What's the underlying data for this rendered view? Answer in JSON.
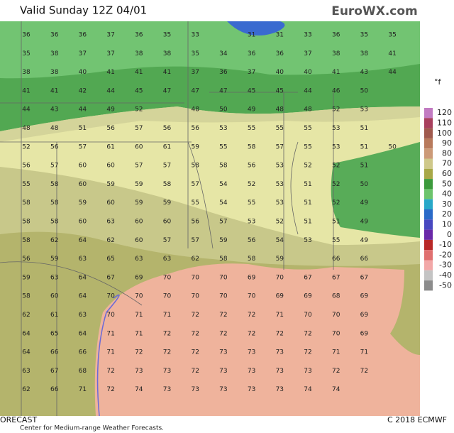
{
  "header": {
    "title": "Valid Sunday 12Z 04/01",
    "brand": "EuroWX.com"
  },
  "legend": {
    "unit": "°f",
    "items": [
      {
        "label": 120,
        "color": "#c27bc2"
      },
      {
        "label": 110,
        "color": "#a8405e"
      },
      {
        "label": 100,
        "color": "#a05a4e"
      },
      {
        "label": 90,
        "color": "#b87a5c"
      },
      {
        "label": 80,
        "color": "#cc9a78"
      },
      {
        "label": 70,
        "color": "#cfc88a"
      },
      {
        "label": 60,
        "color": "#a8a848"
      },
      {
        "label": 50,
        "color": "#3c9a3c"
      },
      {
        "label": 40,
        "color": "#6cc46c"
      },
      {
        "label": 30,
        "color": "#28a8c8"
      },
      {
        "label": 20,
        "color": "#2a6ac8"
      },
      {
        "label": 10,
        "color": "#4848c0"
      },
      {
        "label": 0,
        "color": "#6a28a8"
      },
      {
        "label": -10,
        "color": "#b82828"
      },
      {
        "label": -20,
        "color": "#e07070"
      },
      {
        "label": -30,
        "color": "#f2a8a8"
      },
      {
        "label": -40,
        "color": "#c4c4c4"
      },
      {
        "label": -50,
        "color": "#8c8c8c"
      }
    ]
  },
  "grid": {
    "rows": [
      [
        36,
        36,
        36,
        37,
        36,
        35,
        33,
        null,
        31,
        31,
        33,
        36,
        35,
        35
      ],
      [
        35,
        38,
        37,
        37,
        38,
        38,
        35,
        34,
        36,
        36,
        37,
        38,
        38,
        41
      ],
      [
        38,
        38,
        40,
        41,
        41,
        41,
        37,
        36,
        37,
        40,
        40,
        41,
        43,
        44
      ],
      [
        41,
        41,
        42,
        44,
        45,
        47,
        47,
        47,
        45,
        45,
        44,
        46,
        50,
        null
      ],
      [
        44,
        43,
        44,
        49,
        52,
        null,
        48,
        50,
        49,
        48,
        48,
        52,
        53,
        null
      ],
      [
        48,
        48,
        51,
        56,
        57,
        56,
        56,
        53,
        55,
        55,
        55,
        53,
        51,
        null
      ],
      [
        52,
        56,
        57,
        61,
        60,
        61,
        59,
        55,
        58,
        57,
        55,
        53,
        51,
        50
      ],
      [
        56,
        57,
        60,
        60,
        57,
        57,
        58,
        58,
        56,
        53,
        52,
        52,
        51,
        null
      ],
      [
        55,
        58,
        60,
        59,
        59,
        58,
        57,
        54,
        52,
        53,
        51,
        52,
        50,
        null
      ],
      [
        58,
        58,
        59,
        60,
        59,
        59,
        55,
        54,
        55,
        53,
        51,
        52,
        49,
        null
      ],
      [
        58,
        58,
        60,
        63,
        60,
        60,
        56,
        57,
        53,
        52,
        51,
        51,
        49,
        null
      ],
      [
        58,
        62,
        64,
        62,
        60,
        57,
        57,
        59,
        56,
        54,
        53,
        55,
        49,
        null
      ],
      [
        56,
        59,
        63,
        65,
        63,
        63,
        62,
        58,
        58,
        59,
        null,
        66,
        66,
        null
      ],
      [
        59,
        63,
        64,
        67,
        69,
        70,
        70,
        70,
        69,
        70,
        67,
        67,
        67,
        null
      ],
      [
        58,
        60,
        64,
        70,
        70,
        70,
        70,
        70,
        70,
        69,
        69,
        68,
        69,
        null
      ],
      [
        62,
        61,
        63,
        70,
        71,
        71,
        72,
        72,
        72,
        71,
        70,
        70,
        69,
        null
      ],
      [
        64,
        65,
        64,
        71,
        71,
        72,
        72,
        72,
        72,
        72,
        72,
        70,
        69,
        null
      ],
      [
        64,
        66,
        66,
        71,
        72,
        72,
        72,
        73,
        73,
        73,
        72,
        71,
        71,
        null
      ],
      [
        63,
        67,
        68,
        72,
        73,
        73,
        72,
        73,
        73,
        73,
        73,
        72,
        72,
        null
      ],
      [
        62,
        66,
        71,
        72,
        74,
        73,
        73,
        73,
        73,
        73,
        74,
        74,
        null,
        null
      ]
    ]
  },
  "footer": {
    "left": "ORECAST",
    "sub": "Center for Medium-range Weather Forecasts.",
    "copyright": "C 2018 ECMWF"
  }
}
